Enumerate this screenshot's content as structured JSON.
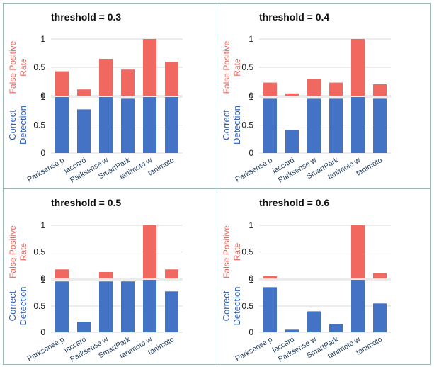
{
  "colors": {
    "detection": "#4472c4",
    "false_positive": "#f06860",
    "label_red": "#e8675e",
    "label_blue": "#2e5fb8",
    "grid": "#d9d9d9",
    "border": "#9fb6b6",
    "tick_text": "#1a1a1a",
    "category_text": "#1f3a5a"
  },
  "y_labels": {
    "false_positive": [
      "False Positive",
      "Rate"
    ],
    "detection": [
      "Correct",
      "Detection"
    ]
  },
  "chart_data": [
    {
      "type": "bar",
      "title": "threshold = 0.3",
      "categories": [
        "Parksense p",
        "jaccard",
        "Parksense w",
        "SmartPark",
        "tanimoto w",
        "tanimoto"
      ],
      "series": [
        {
          "name": "False Positive Rate",
          "values": [
            0.43,
            0.11,
            0.65,
            0.46,
            1.0,
            0.6
          ]
        },
        {
          "name": "Correct Detection",
          "values": [
            1.0,
            0.78,
            1.0,
            0.97,
            1.0,
            1.0
          ]
        }
      ],
      "fp_ticks": [
        "0",
        "0.5",
        "1"
      ],
      "det_ticks": [
        "0",
        "0.5",
        "1"
      ],
      "ylim": [
        0,
        1
      ],
      "grid": true
    },
    {
      "type": "bar",
      "title": "threshold = 0.4",
      "categories": [
        "Parksense p",
        "jaccard",
        "Parksense w",
        "SmartPark",
        "tanimoto w",
        "tanimoto"
      ],
      "series": [
        {
          "name": "False Positive Rate",
          "values": [
            0.23,
            0.04,
            0.29,
            0.23,
            1.0,
            0.2
          ]
        },
        {
          "name": "Correct Detection",
          "values": [
            0.97,
            0.41,
            0.97,
            0.97,
            1.0,
            0.97
          ]
        }
      ],
      "fp_ticks": [
        "0",
        "0.5",
        "1"
      ],
      "det_ticks": [
        "0",
        "0.5",
        "1"
      ],
      "ylim": [
        0,
        1
      ],
      "grid": true
    },
    {
      "type": "bar",
      "title": "threshold = 0.5",
      "categories": [
        "Parksense p",
        "jaccard",
        "Parksense w",
        "SmartPark",
        "tanimoto w",
        "tanimoto"
      ],
      "series": [
        {
          "name": "False Positive Rate",
          "values": [
            0.17,
            0.0,
            0.12,
            0.0,
            1.0,
            0.17
          ]
        },
        {
          "name": "Correct Detection",
          "values": [
            0.97,
            0.2,
            0.97,
            0.97,
            1.0,
            0.78
          ]
        }
      ],
      "fp_ticks": [
        "0",
        "0.5",
        "1"
      ],
      "det_ticks": [
        "0",
        "0.5",
        "1"
      ],
      "ylim": [
        0,
        1
      ],
      "grid": true
    },
    {
      "type": "bar",
      "title": "threshold = 0.6",
      "categories": [
        "Parksense p",
        "jaccard",
        "Parksense w",
        "SmartPark",
        "tanimoto w",
        "tanimoto"
      ],
      "series": [
        {
          "name": "False Positive Rate",
          "values": [
            0.04,
            0.0,
            0.0,
            0.0,
            1.0,
            0.1
          ]
        },
        {
          "name": "Correct Detection",
          "values": [
            0.86,
            0.05,
            0.4,
            0.16,
            1.0,
            0.55
          ]
        }
      ],
      "fp_ticks": [
        "0",
        "0.5",
        "1"
      ],
      "det_ticks": [
        "0",
        "0.5",
        "1"
      ],
      "ylim": [
        0,
        1
      ],
      "grid": true
    }
  ]
}
